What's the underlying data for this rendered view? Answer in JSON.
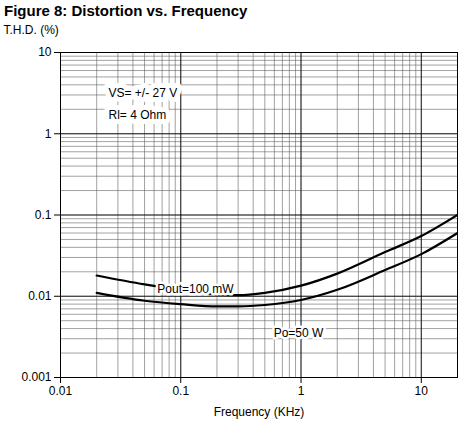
{
  "chart_data": {
    "type": "line",
    "title": "Figure 8: Distortion vs. Frequency",
    "x_label": "Frequency (KHz)",
    "y_label": "T.H.D. (%)",
    "annotations": [
      "VS= +/- 27 V",
      "Rl= 4 Ohm"
    ],
    "log": true,
    "grid": true,
    "xlim": [
      0.01,
      20
    ],
    "xticks": [
      0.01,
      0.1,
      1,
      10
    ],
    "ylim": [
      0.001,
      10
    ],
    "yticks": [
      0.001,
      0.01,
      0.1,
      1,
      10
    ],
    "x": [
      0.02,
      0.05,
      0.1,
      0.2,
      0.3,
      0.5,
      1,
      2,
      5,
      10,
      20
    ],
    "series": [
      {
        "name": "Pout=100 mW",
        "color": "#000000",
        "values": [
          0.018,
          0.014,
          0.012,
          0.0105,
          0.0103,
          0.011,
          0.0135,
          0.019,
          0.035,
          0.055,
          0.1
        ]
      },
      {
        "name": "Po=50 W",
        "color": "#000000",
        "values": [
          0.011,
          0.0088,
          0.008,
          0.0075,
          0.0075,
          0.0078,
          0.009,
          0.012,
          0.021,
          0.033,
          0.06
        ]
      }
    ]
  }
}
